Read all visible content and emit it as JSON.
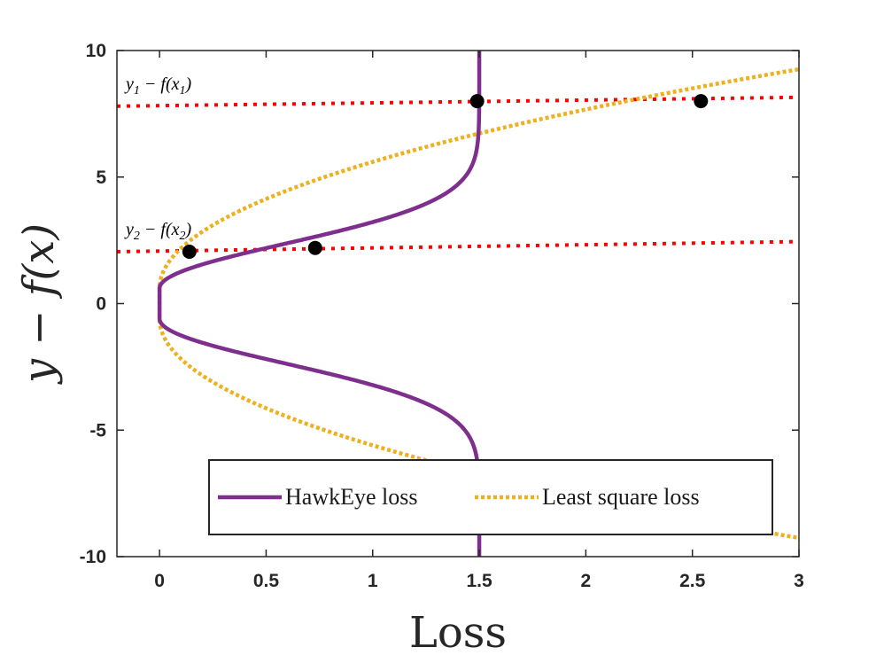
{
  "chart_data": {
    "type": "line",
    "title": "",
    "xlabel": "Loss",
    "ylabel": "y − f(x)",
    "xlim": [
      -0.2,
      3
    ],
    "ylim": [
      -10,
      10
    ],
    "xticks": [
      0,
      0.5,
      1,
      1.5,
      2,
      2.5,
      3
    ],
    "xtick_labels": [
      "0",
      "0.5",
      "1",
      "1.5",
      "2",
      "2.5",
      "3"
    ],
    "yticks": [
      -10,
      -5,
      0,
      5,
      10
    ],
    "ytick_labels": [
      "-10",
      "-5",
      "0",
      "5",
      "10"
    ],
    "grid": false,
    "legend_position": "bottom-right",
    "series": [
      {
        "name": "HawkEye loss",
        "style": "solid",
        "color": "#7E2F8E",
        "loss_max": 1.5,
        "insensitive_half_width": 0.6,
        "scale": 2.5
      },
      {
        "name": "Least square loss",
        "style": "dotted",
        "color": "#EDB120",
        "insensitive_half_width": 0.6
      }
    ],
    "reference_lines": [
      {
        "label": "y_1 - f(x_1)",
        "main": "y",
        "sub": "1",
        "mid": " − f(x",
        "sub2": "1",
        "tail": ")",
        "points": [
          [
            -0.2,
            7.8
          ],
          [
            3,
            8.15
          ]
        ],
        "color": "#FF0000",
        "style": "dotted"
      },
      {
        "label": "y_2 - f(x_2)",
        "main": "y",
        "sub": "2",
        "mid": " − f(x",
        "sub2": "2",
        "tail": ")",
        "points": [
          [
            -0.2,
            2.05
          ],
          [
            3,
            2.45
          ]
        ],
        "color": "#FF0000",
        "style": "dotted"
      }
    ],
    "markers": [
      {
        "x": 1.49,
        "y": 8.0
      },
      {
        "x": 2.54,
        "y": 8.0
      },
      {
        "x": 0.14,
        "y": 2.05
      },
      {
        "x": 0.73,
        "y": 2.2
      }
    ]
  }
}
